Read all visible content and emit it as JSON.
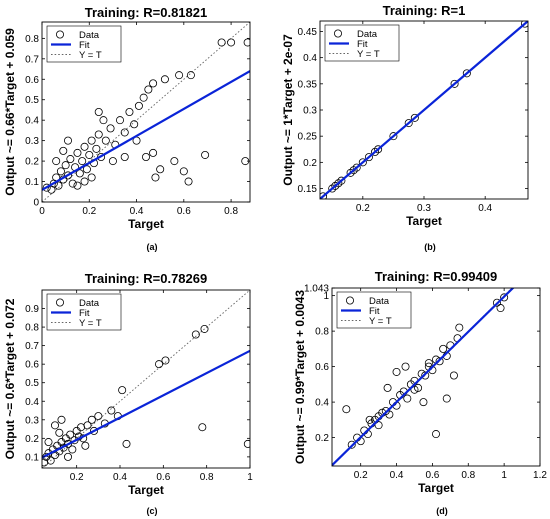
{
  "chart_data": [
    {
      "type": "scatter",
      "caption": "(a)",
      "title": "Training: R=0.81821",
      "xlabel": "Target",
      "ylabel": "Output ~= 0.66*Target + 0.059",
      "xlim": [
        0,
        0.88
      ],
      "ylim": [
        0,
        0.88
      ],
      "xticks": [
        0,
        0.2,
        0.4,
        0.6,
        0.8
      ],
      "xtick_labels": [
        "0",
        "0.2",
        "0.4",
        "0.6",
        "0.8"
      ],
      "yticks": [
        0,
        0.1,
        0.2,
        0.3,
        0.4,
        0.5,
        0.6,
        0.7,
        0.8
      ],
      "ytick_labels": [
        "0",
        "0.1",
        "0.2",
        "0.3",
        "0.4",
        "0.5",
        "0.6",
        "0.7",
        "0.8"
      ],
      "fit": {
        "slope": 0.66,
        "intercept": 0.059
      },
      "legend": {
        "position": "top-left",
        "entries": [
          "Data",
          "Fit",
          "Y = T"
        ]
      },
      "grid": false,
      "points": [
        [
          0.02,
          0.07
        ],
        [
          0.04,
          0.06
        ],
        [
          0.05,
          0.09
        ],
        [
          0.06,
          0.12
        ],
        [
          0.07,
          0.08
        ],
        [
          0.08,
          0.15
        ],
        [
          0.09,
          0.11
        ],
        [
          0.1,
          0.18
        ],
        [
          0.11,
          0.13
        ],
        [
          0.12,
          0.21
        ],
        [
          0.13,
          0.09
        ],
        [
          0.14,
          0.17
        ],
        [
          0.15,
          0.24
        ],
        [
          0.16,
          0.14
        ],
        [
          0.17,
          0.2
        ],
        [
          0.18,
          0.27
        ],
        [
          0.19,
          0.16
        ],
        [
          0.2,
          0.23
        ],
        [
          0.21,
          0.3
        ],
        [
          0.22,
          0.19
        ],
        [
          0.23,
          0.26
        ],
        [
          0.24,
          0.33
        ],
        [
          0.25,
          0.22
        ],
        [
          0.27,
          0.3
        ],
        [
          0.29,
          0.36
        ],
        [
          0.31,
          0.28
        ],
        [
          0.33,
          0.4
        ],
        [
          0.35,
          0.34
        ],
        [
          0.37,
          0.44
        ],
        [
          0.39,
          0.38
        ],
        [
          0.41,
          0.47
        ],
        [
          0.43,
          0.51
        ],
        [
          0.45,
          0.55
        ],
        [
          0.47,
          0.58
        ],
        [
          0.4,
          0.3
        ],
        [
          0.44,
          0.22
        ],
        [
          0.47,
          0.24
        ],
        [
          0.5,
          0.16
        ],
        [
          0.56,
          0.2
        ],
        [
          0.6,
          0.15
        ],
        [
          0.62,
          0.1
        ],
        [
          0.58,
          0.62
        ],
        [
          0.63,
          0.62
        ],
        [
          0.69,
          0.23
        ],
        [
          0.76,
          0.78
        ],
        [
          0.8,
          0.78
        ],
        [
          0.86,
          0.2
        ],
        [
          0.87,
          0.78
        ],
        [
          0.48,
          0.12
        ],
        [
          0.52,
          0.6
        ],
        [
          0.3,
          0.2
        ],
        [
          0.35,
          0.22
        ],
        [
          0.26,
          0.4
        ],
        [
          0.06,
          0.2
        ],
        [
          0.09,
          0.25
        ],
        [
          0.15,
          0.08
        ],
        [
          0.18,
          0.1
        ],
        [
          0.11,
          0.3
        ],
        [
          0.21,
          0.12
        ],
        [
          0.24,
          0.44
        ]
      ]
    },
    {
      "type": "scatter",
      "caption": "(b)",
      "title": "Training: R=1",
      "xlabel": "Target",
      "ylabel": "Output ~= 1*Target + 2e-07",
      "xlim": [
        0.13,
        0.47
      ],
      "ylim": [
        0.13,
        0.47
      ],
      "xticks": [
        0.2,
        0.3,
        0.4
      ],
      "xtick_labels": [
        "0.2",
        "0.3",
        "0.4"
      ],
      "yticks": [
        0.15,
        0.2,
        0.25,
        0.3,
        0.35,
        0.4,
        0.45
      ],
      "ytick_labels": [
        "0.15",
        "0.2",
        "0.25",
        "0.3",
        "0.35",
        "0.4",
        "0.45"
      ],
      "fit": {
        "slope": 1,
        "intercept": 0
      },
      "legend": {
        "position": "top-left",
        "entries": [
          "Data",
          "Fit",
          "Y = T"
        ]
      },
      "grid": false,
      "points": [
        [
          0.135,
          0.135
        ],
        [
          0.15,
          0.15
        ],
        [
          0.155,
          0.155
        ],
        [
          0.16,
          0.16
        ],
        [
          0.165,
          0.165
        ],
        [
          0.18,
          0.18
        ],
        [
          0.185,
          0.185
        ],
        [
          0.19,
          0.19
        ],
        [
          0.2,
          0.2
        ],
        [
          0.21,
          0.21
        ],
        [
          0.22,
          0.22
        ],
        [
          0.225,
          0.225
        ],
        [
          0.25,
          0.25
        ],
        [
          0.275,
          0.275
        ],
        [
          0.285,
          0.285
        ],
        [
          0.35,
          0.35
        ],
        [
          0.37,
          0.37
        ],
        [
          0.465,
          0.465
        ]
      ]
    },
    {
      "type": "scatter",
      "caption": "(c)",
      "title": "Training: R=0.78269",
      "xlabel": "Target",
      "ylabel": "Output ~= 0.6*Target + 0.072",
      "xlim": [
        0.04,
        1
      ],
      "ylim": [
        0.04,
        1
      ],
      "xticks": [
        0.2,
        0.4,
        0.6,
        0.8,
        1
      ],
      "xtick_labels": [
        "0.2",
        "0.4",
        "0.6",
        "0.8",
        "1"
      ],
      "yticks": [
        0.1,
        0.2,
        0.3,
        0.4,
        0.5,
        0.6,
        0.7,
        0.8,
        0.9
      ],
      "ytick_labels": [
        "0.1",
        "0.2",
        "0.3",
        "0.4",
        "0.5",
        "0.6",
        "0.7",
        "0.8",
        "0.9"
      ],
      "fit": {
        "slope": 0.6,
        "intercept": 0.072
      },
      "legend": {
        "position": "top-left",
        "entries": [
          "Data",
          "Fit",
          "Y = T"
        ]
      },
      "grid": false,
      "points": [
        [
          0.05,
          0.07
        ],
        [
          0.06,
          0.1
        ],
        [
          0.07,
          0.12
        ],
        [
          0.08,
          0.08
        ],
        [
          0.09,
          0.14
        ],
        [
          0.1,
          0.11
        ],
        [
          0.11,
          0.16
        ],
        [
          0.12,
          0.13
        ],
        [
          0.13,
          0.18
        ],
        [
          0.14,
          0.15
        ],
        [
          0.15,
          0.2
        ],
        [
          0.16,
          0.17
        ],
        [
          0.17,
          0.22
        ],
        [
          0.18,
          0.14
        ],
        [
          0.19,
          0.19
        ],
        [
          0.2,
          0.24
        ],
        [
          0.21,
          0.21
        ],
        [
          0.22,
          0.26
        ],
        [
          0.23,
          0.2
        ],
        [
          0.25,
          0.27
        ],
        [
          0.27,
          0.3
        ],
        [
          0.28,
          0.24
        ],
        [
          0.3,
          0.32
        ],
        [
          0.33,
          0.28
        ],
        [
          0.36,
          0.35
        ],
        [
          0.39,
          0.32
        ],
        [
          0.41,
          0.46
        ],
        [
          0.43,
          0.17
        ],
        [
          0.58,
          0.6
        ],
        [
          0.61,
          0.62
        ],
        [
          0.78,
          0.26
        ],
        [
          0.79,
          0.79
        ],
        [
          0.99,
          0.17
        ],
        [
          0.75,
          0.76
        ],
        [
          0.1,
          0.27
        ],
        [
          0.13,
          0.3
        ],
        [
          0.16,
          0.1
        ],
        [
          0.24,
          0.16
        ],
        [
          0.07,
          0.18
        ],
        [
          0.12,
          0.23
        ]
      ]
    },
    {
      "type": "scatter",
      "caption": "(d)",
      "title": "Training: R=0.99409",
      "xlabel": "Target",
      "ylabel": "Output ~= 0.99*Target + 0.0043",
      "xlim": [
        0.04,
        1.2
      ],
      "ylim": [
        0.04,
        1.043
      ],
      "xticks": [
        0.2,
        0.4,
        0.6,
        0.8,
        1,
        1.2
      ],
      "xtick_labels": [
        "0.2",
        "0.4",
        "0.6",
        "0.8",
        "1",
        "1.2"
      ],
      "yticks": [
        0.2,
        0.4,
        0.6,
        0.8,
        1,
        1.043
      ],
      "ytick_labels": [
        "0.2",
        "0.4",
        "0.6",
        "0.8",
        "1",
        "1.043"
      ],
      "fit": {
        "slope": 0.99,
        "intercept": 0.0043
      },
      "legend": {
        "position": "top-left",
        "entries": [
          "Data",
          "Fit",
          "Y = T"
        ]
      },
      "grid": false,
      "points": [
        [
          0.12,
          0.36
        ],
        [
          0.15,
          0.16
        ],
        [
          0.18,
          0.2
        ],
        [
          0.2,
          0.18
        ],
        [
          0.22,
          0.24
        ],
        [
          0.24,
          0.22
        ],
        [
          0.26,
          0.28
        ],
        [
          0.28,
          0.3
        ],
        [
          0.3,
          0.27
        ],
        [
          0.32,
          0.34
        ],
        [
          0.34,
          0.35
        ],
        [
          0.36,
          0.33
        ],
        [
          0.38,
          0.4
        ],
        [
          0.4,
          0.38
        ],
        [
          0.42,
          0.44
        ],
        [
          0.44,
          0.46
        ],
        [
          0.46,
          0.42
        ],
        [
          0.48,
          0.5
        ],
        [
          0.5,
          0.52
        ],
        [
          0.52,
          0.48
        ],
        [
          0.54,
          0.56
        ],
        [
          0.56,
          0.55
        ],
        [
          0.58,
          0.6
        ],
        [
          0.6,
          0.58
        ],
        [
          0.62,
          0.64
        ],
        [
          0.64,
          0.63
        ],
        [
          0.66,
          0.7
        ],
        [
          0.68,
          0.66
        ],
        [
          0.7,
          0.72
        ],
        [
          0.74,
          0.76
        ],
        [
          0.96,
          0.96
        ],
        [
          1.0,
          0.99
        ],
        [
          0.98,
          0.93
        ],
        [
          0.4,
          0.57
        ],
        [
          0.45,
          0.6
        ],
        [
          0.55,
          0.4
        ],
        [
          0.62,
          0.22
        ],
        [
          0.68,
          0.42
        ],
        [
          0.25,
          0.3
        ],
        [
          0.35,
          0.48
        ],
        [
          0.75,
          0.82
        ],
        [
          0.72,
          0.55
        ],
        [
          0.3,
          0.32
        ],
        [
          0.5,
          0.47
        ],
        [
          0.58,
          0.62
        ]
      ]
    }
  ]
}
